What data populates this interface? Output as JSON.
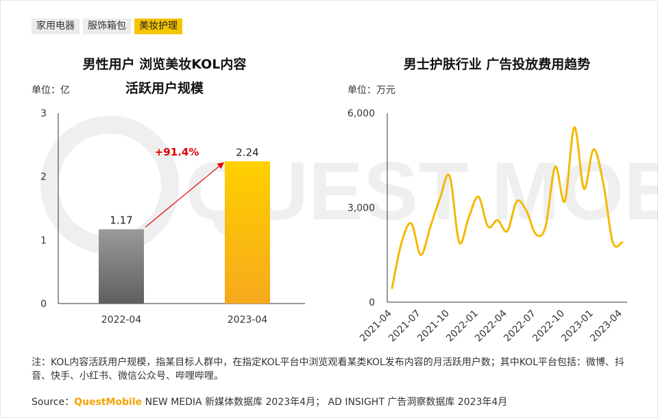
{
  "tabs": [
    {
      "label": "家用电器",
      "active": false
    },
    {
      "label": "服饰箱包",
      "active": false
    },
    {
      "label": "美妆护理",
      "active": true
    }
  ],
  "watermark": "QUEST MOBILE",
  "chart_data": [
    {
      "type": "bar",
      "title_line1": "男性用户 浏览美妆KOL内容",
      "title_line2": "活跃用户规模",
      "unit_label": "单位：亿",
      "categories": [
        "2022-04",
        "2023-04"
      ],
      "values": [
        1.17,
        2.24
      ],
      "value_labels": [
        "1.17",
        "2.24"
      ],
      "yticks": [
        "0",
        "1",
        "2",
        "3"
      ],
      "ylim": [
        0,
        3
      ],
      "growth_label": "+91.4%",
      "colors": {
        "bar1": "#7a7a7a",
        "bar2": "#fbbf0e",
        "arrow": "#e00000"
      }
    },
    {
      "type": "line",
      "title": "男士护肤行业 广告投放费用趋势",
      "unit_label": "单位：万元",
      "x": [
        "2021-04",
        "2021-05",
        "2021-06",
        "2021-07",
        "2021-08",
        "2021-09",
        "2021-10",
        "2021-11",
        "2021-12",
        "2022-01",
        "2022-02",
        "2022-03",
        "2022-04",
        "2022-05",
        "2022-06",
        "2022-07",
        "2022-08",
        "2022-09",
        "2022-10",
        "2022-11",
        "2022-12",
        "2023-01",
        "2023-02",
        "2023-03",
        "2023-04"
      ],
      "values": [
        450,
        1900,
        2500,
        1500,
        2400,
        3300,
        4000,
        1900,
        2700,
        3350,
        2400,
        2600,
        2250,
        3200,
        2900,
        2150,
        2400,
        4300,
        3200,
        5550,
        3600,
        4850,
        3800,
        1900,
        1900
      ],
      "xtick_labels": [
        "2021-04",
        "2021-07",
        "2021-10",
        "2022-01",
        "2022-04",
        "2022-07",
        "2022-10",
        "2023-01",
        "2023-04"
      ],
      "yticks": [
        "0",
        "3,000",
        "6,000"
      ],
      "ylim": [
        0,
        6000
      ],
      "colors": {
        "line": "#f5b800"
      }
    }
  ],
  "footnote": "注：KOL内容活跃用户规模，指某目标人群中，在指定KOL平台中浏览观看某类KOL发布内容的月活跃用户数；其中KOL平台包括：微博、抖音、快手、小红书、微信公众号、哔哩哔哩。",
  "source": {
    "prefix": "Source：",
    "brand": "QuestMobile",
    "text": " NEW MEDIA 新媒体数据库 2023年4月； AD INSIGHT 广告洞察数据库 2023年4月"
  }
}
